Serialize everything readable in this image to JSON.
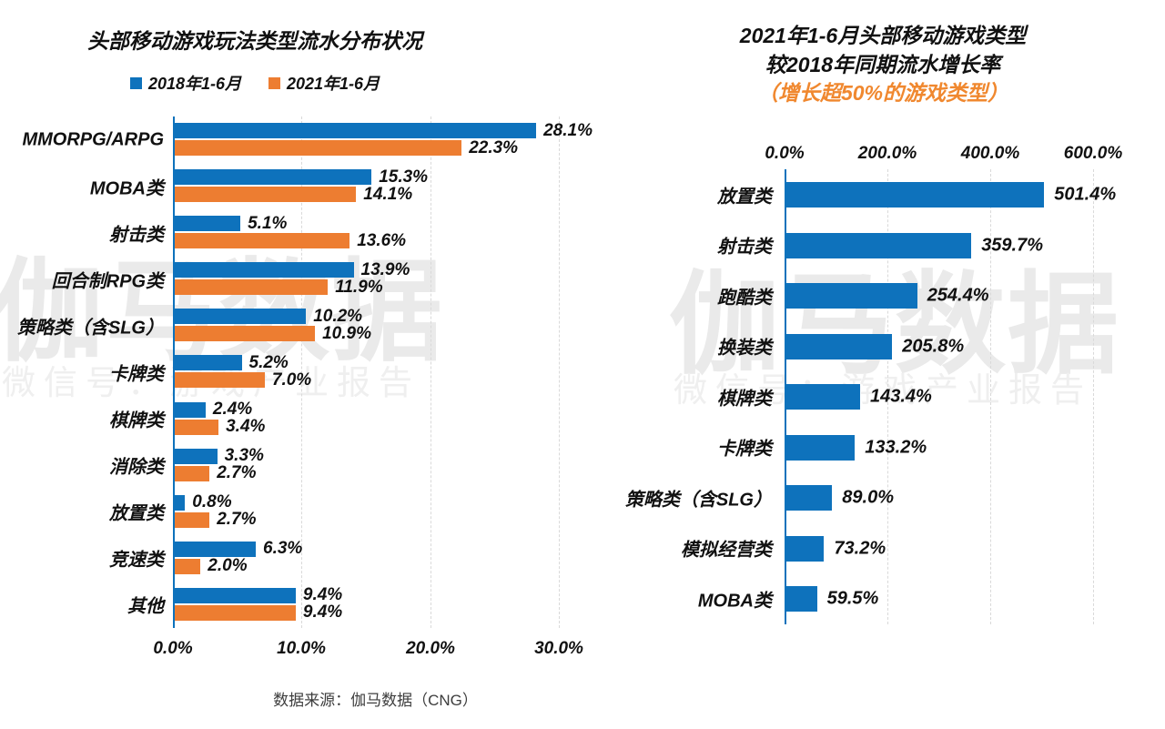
{
  "colors": {
    "blue": "#0E72BC",
    "orange": "#ED7D31",
    "subtitle_orange": "#F0882F",
    "grid": "#D9D9D9",
    "watermark_big": "#EAEAEA",
    "watermark_small": "#EFEFEF"
  },
  "watermark": {
    "big": "伽马数据",
    "small": "微信号：游戏产业报告"
  },
  "source": "数据来源：伽马数据（CNG）",
  "chart_data": [
    {
      "type": "bar",
      "orientation": "horizontal",
      "title": "头部移动游戏玩法类型流水分布状况",
      "legend": [
        "2018年1-6月",
        "2021年1-6月"
      ],
      "categories": [
        "MMORPG/ARPG",
        "MOBA类",
        "射击类",
        "回合制RPG类",
        "策略类（含SLG）",
        "卡牌类",
        "棋牌类",
        "消除类",
        "放置类",
        "竞速类",
        "其他"
      ],
      "series": [
        {
          "name": "2018年1-6月",
          "values": [
            28.1,
            15.3,
            5.1,
            13.9,
            10.2,
            5.2,
            2.4,
            3.3,
            0.8,
            6.3,
            9.4
          ]
        },
        {
          "name": "2021年1-6月",
          "values": [
            22.3,
            14.1,
            13.6,
            11.9,
            10.9,
            7.0,
            3.4,
            2.7,
            2.7,
            2.0,
            9.4
          ]
        }
      ],
      "value_suffix": "%",
      "xlabel": "",
      "ylabel": "",
      "xlim": [
        0,
        30
      ],
      "xticks": [
        "0.0%",
        "10.0%",
        "20.0%",
        "30.0%"
      ],
      "grid": "dashed-vertical",
      "legend_position": "top"
    },
    {
      "type": "bar",
      "orientation": "horizontal",
      "title_line1": "2021年1-6月头部移动游戏类型",
      "title_line2": "较2018年同期流水增长率",
      "subtitle": "（增长超50%的游戏类型）",
      "categories": [
        "放置类",
        "射击类",
        "跑酷类",
        "换装类",
        "棋牌类",
        "卡牌类",
        "策略类（含SLG）",
        "模拟经营类",
        "MOBA类"
      ],
      "values": [
        501.4,
        359.7,
        254.4,
        205.8,
        143.4,
        133.2,
        89.0,
        73.2,
        59.5
      ],
      "value_suffix": "%",
      "xlabel": "",
      "ylabel": "",
      "xlim": [
        0,
        600
      ],
      "xticks": [
        "0.0%",
        "200.0%",
        "400.0%",
        "600.0%"
      ],
      "grid": "dashed-vertical",
      "ticks_position": "top"
    }
  ]
}
